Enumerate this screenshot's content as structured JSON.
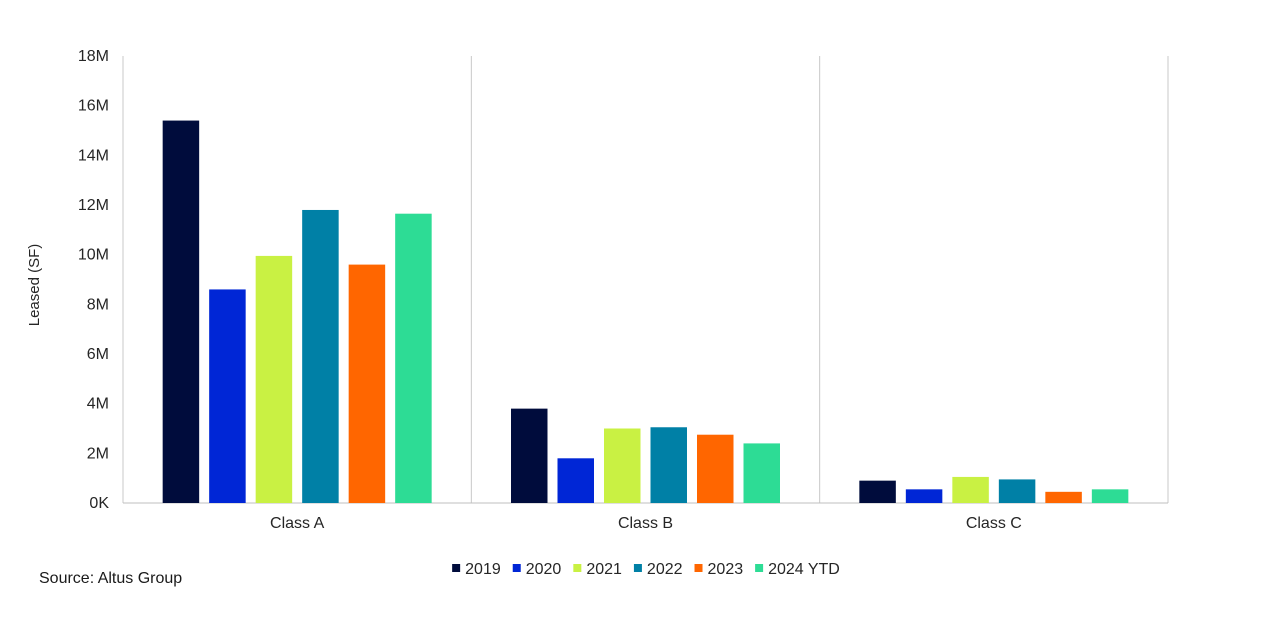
{
  "chart_data": {
    "type": "bar",
    "categories": [
      "Class A",
      "Class B",
      "Class C"
    ],
    "ylabel": "Leased (SF)",
    "ylim": [
      0,
      18000000
    ],
    "yticks": [
      {
        "value": 0,
        "label": "0K"
      },
      {
        "value": 2000000,
        "label": "2M"
      },
      {
        "value": 4000000,
        "label": "4M"
      },
      {
        "value": 6000000,
        "label": "6M"
      },
      {
        "value": 8000000,
        "label": "8M"
      },
      {
        "value": 10000000,
        "label": "10M"
      },
      {
        "value": 12000000,
        "label": "12M"
      },
      {
        "value": 14000000,
        "label": "14M"
      },
      {
        "value": 16000000,
        "label": "16M"
      },
      {
        "value": 18000000,
        "label": "18M"
      }
    ],
    "series": [
      {
        "name": "2019",
        "color": "#000c3c",
        "values": [
          15400000,
          3800000,
          900000
        ]
      },
      {
        "name": "2020",
        "color": "#0026d6",
        "values": [
          8600000,
          1800000,
          550000
        ]
      },
      {
        "name": "2021",
        "color": "#c9f143",
        "values": [
          9950000,
          3000000,
          1050000
        ]
      },
      {
        "name": "2022",
        "color": "#0080a6",
        "values": [
          11800000,
          3050000,
          950000
        ]
      },
      {
        "name": "2023",
        "color": "#ff6600",
        "values": [
          9600000,
          2750000,
          450000
        ]
      },
      {
        "name": "2024 YTD",
        "color": "#2ddc95",
        "values": [
          11650000,
          2400000,
          550000
        ]
      }
    ],
    "legend_position": "bottom",
    "grid": false
  },
  "source_text": "Source: Altus Group"
}
